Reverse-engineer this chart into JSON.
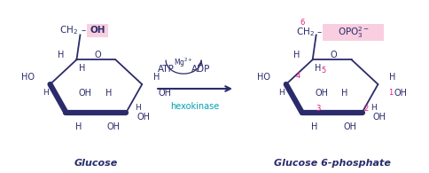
{
  "bg_color": "#ffffff",
  "dark_color": "#2b2b6b",
  "pink_color": "#e8197d",
  "cyan_color": "#00a0b0",
  "highlight_pink": "#f9cfe0",
  "fig_width": 4.85,
  "fig_height": 1.95,
  "dpi": 100,
  "glucose_label": "Glucose",
  "g6p_label": "Glucose 6-phosphate",
  "atp_label": "ATP",
  "adp_label": "ADP",
  "mg_label": "Mg$^{2+}$",
  "enzyme_label": "hexokinase"
}
